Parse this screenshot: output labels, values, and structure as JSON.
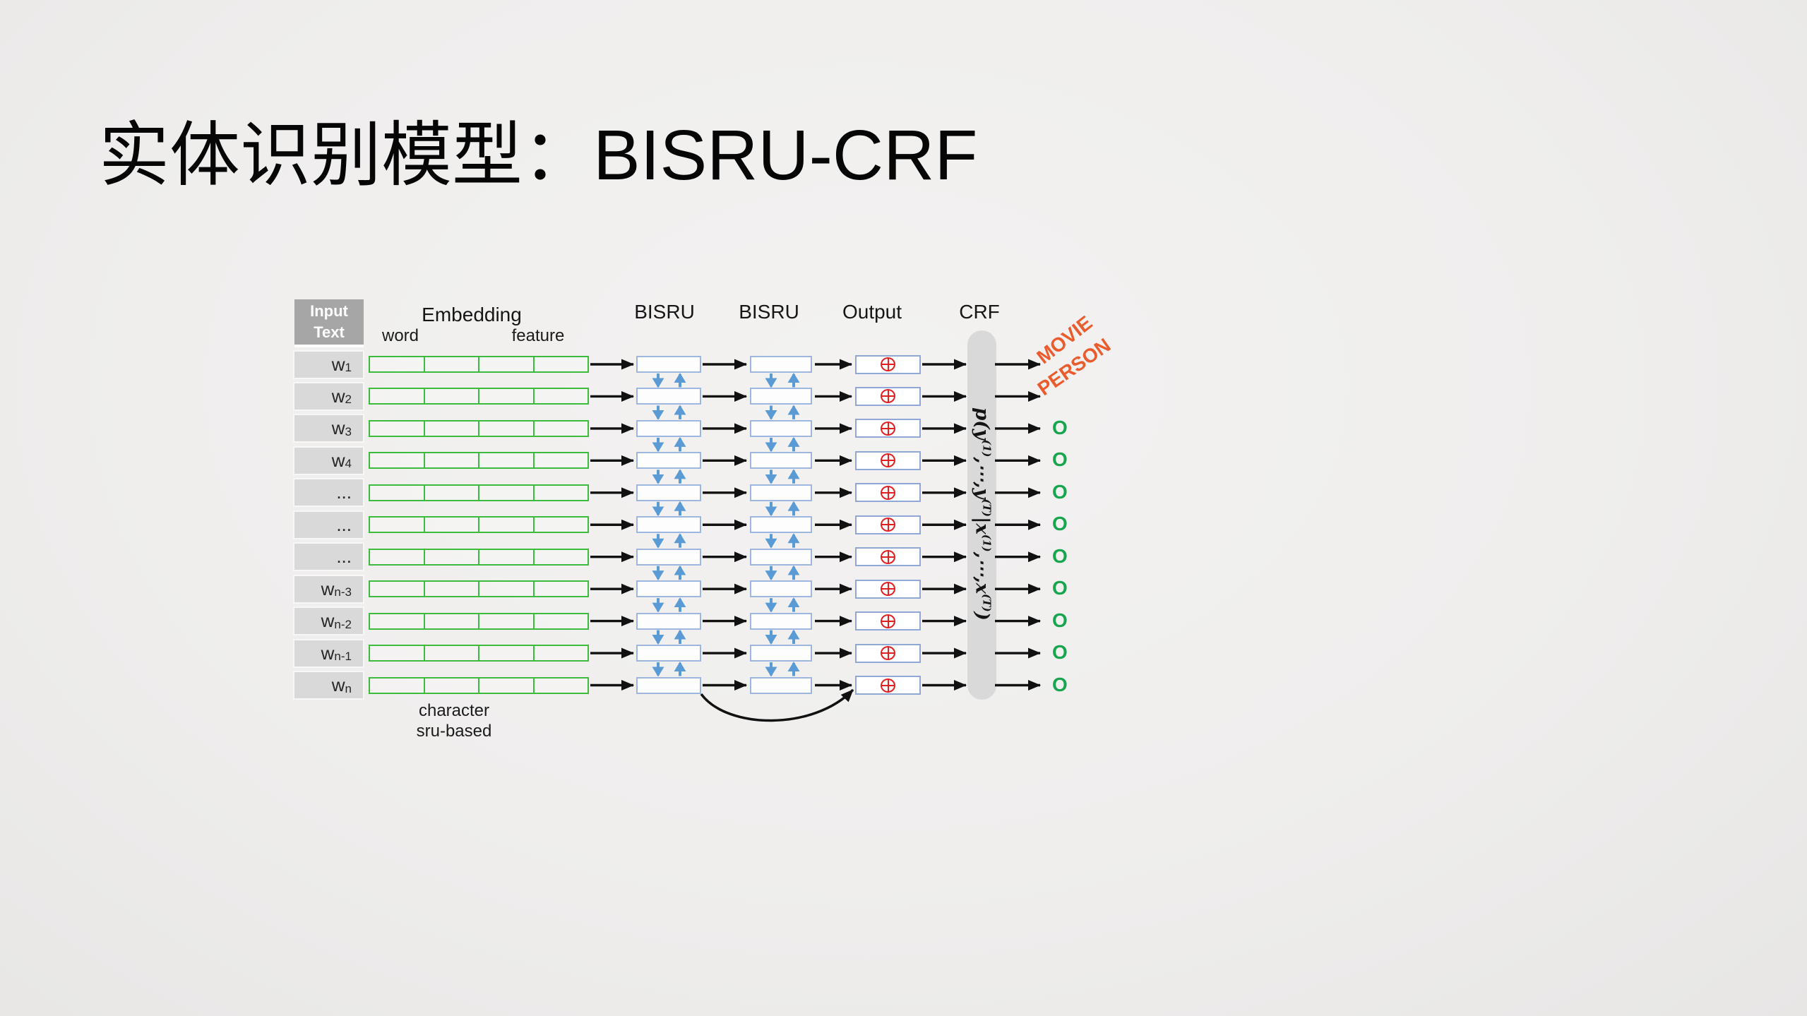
{
  "title": "实体识别模型：BISRU-CRF",
  "diagram": {
    "input_header": [
      "Input",
      "Text"
    ],
    "embedding_header": "Embedding",
    "word_label": "word",
    "feature_label": "feature",
    "bisru1_header": "BISRU",
    "bisru2_header": "BISRU",
    "output_header": "Output",
    "crf_header": "CRF",
    "note_lines": [
      "character",
      "sru-based"
    ],
    "rows": [
      {
        "input": "w",
        "sub": "1",
        "output": "MOVIE",
        "output_type": "entity"
      },
      {
        "input": "w",
        "sub": "2",
        "output": "PERSON",
        "output_type": "entity"
      },
      {
        "input": "w",
        "sub": "3",
        "output": "O",
        "output_type": "other"
      },
      {
        "input": "w",
        "sub": "4",
        "output": "O",
        "output_type": "other"
      },
      {
        "input": "...",
        "sub": "",
        "output": "O",
        "output_type": "other"
      },
      {
        "input": "...",
        "sub": "",
        "output": "O",
        "output_type": "other"
      },
      {
        "input": "...",
        "sub": "",
        "output": "O",
        "output_type": "other"
      },
      {
        "input": "w",
        "sub": "n-3",
        "output": "O",
        "output_type": "other"
      },
      {
        "input": "w",
        "sub": "n-2",
        "output": "O",
        "output_type": "other"
      },
      {
        "input": "w",
        "sub": "n-1",
        "output": "O",
        "output_type": "other"
      },
      {
        "input": "w",
        "sub": "n",
        "output": "O",
        "output_type": "other"
      }
    ],
    "crf_formula": [
      {
        "t": "p(y"
      },
      {
        "s": "(1)"
      },
      {
        "t": ",⋯,y"
      },
      {
        "s": "(T)"
      },
      {
        "t": "|x"
      },
      {
        "s": "(1)"
      },
      {
        "t": ",⋯,x"
      },
      {
        "s": "(T)"
      },
      {
        "t": ")"
      }
    ],
    "colors": {
      "embedding_green": "#3cbc3c",
      "box_blue_border": "#9db7e0",
      "arrow_blue": "#5b9bd5",
      "oplus_red": "#e32020",
      "entity_orange": "#ea5c2d",
      "tag_green": "#17a54e",
      "capsule_gray": "#d9d9d9",
      "row_gray": "#d9d9d9",
      "header_gray": "#a6a6a6",
      "arrow_black": "#111111"
    }
  }
}
